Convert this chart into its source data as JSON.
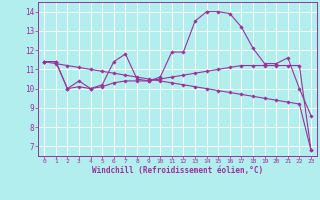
{
  "xlabel": "Windchill (Refroidissement éolien,°C)",
  "bg_color": "#b2eeee",
  "line_color": "#993399",
  "grid_color": "#ffffff",
  "x_ticks": [
    0,
    1,
    2,
    3,
    4,
    5,
    6,
    7,
    8,
    9,
    10,
    11,
    12,
    13,
    14,
    15,
    16,
    17,
    18,
    19,
    20,
    21,
    22,
    23
  ],
  "y_ticks": [
    7,
    8,
    9,
    10,
    11,
    12,
    13,
    14
  ],
  "ylim": [
    6.5,
    14.5
  ],
  "xlim": [
    -0.5,
    23.5
  ],
  "series": [
    [
      11.4,
      11.4,
      10.0,
      10.4,
      10.0,
      10.2,
      11.4,
      11.8,
      10.5,
      10.4,
      10.6,
      11.9,
      11.9,
      13.5,
      14.0,
      14.0,
      13.9,
      13.2,
      12.1,
      11.3,
      11.3,
      11.6,
      10.0,
      8.6
    ],
    [
      11.4,
      11.4,
      10.0,
      10.1,
      10.0,
      10.1,
      10.3,
      10.4,
      10.4,
      10.4,
      10.5,
      10.6,
      10.7,
      10.8,
      10.9,
      11.0,
      11.1,
      11.2,
      11.2,
      11.2,
      11.2,
      11.2,
      11.2,
      6.8
    ],
    [
      11.4,
      11.3,
      11.2,
      11.1,
      11.0,
      10.9,
      10.8,
      10.7,
      10.6,
      10.5,
      10.4,
      10.3,
      10.2,
      10.1,
      10.0,
      9.9,
      9.8,
      9.7,
      9.6,
      9.5,
      9.4,
      9.3,
      9.2,
      6.8
    ]
  ]
}
